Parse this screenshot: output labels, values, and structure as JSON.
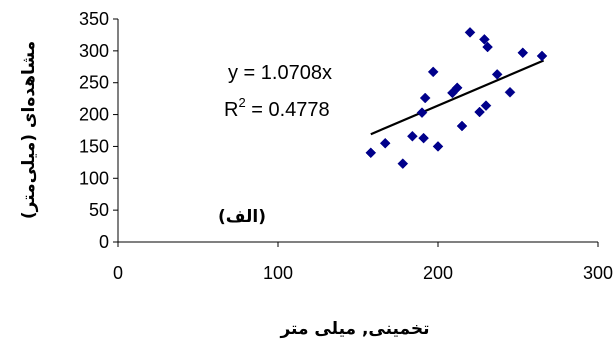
{
  "chart_data": {
    "type": "scatter",
    "title": "",
    "xlabel": "تخمینی, میلی متر",
    "ylabel": "مشاهده‌ای (میلی‌متر)",
    "xlim": [
      0,
      300
    ],
    "ylim": [
      0,
      350
    ],
    "x_ticks": [
      "0",
      "100",
      "200",
      "300"
    ],
    "y_ticks": [
      "0",
      "50",
      "100",
      "150",
      "200",
      "250",
      "300",
      "350"
    ],
    "grid": false,
    "legend": "none",
    "marker_color": "#00008b",
    "marker": "diamond",
    "trendline": {
      "slope": 1.0708,
      "x_range": [
        158,
        266
      ]
    },
    "equation_line1": "y = 1.0708x",
    "equation_r2_base": "R",
    "equation_r2_sup": "2",
    "equation_r2_rest": " = 0.4778",
    "panel_label": "(الف)",
    "points": [
      {
        "x": 158,
        "y": 140
      },
      {
        "x": 167,
        "y": 155
      },
      {
        "x": 178,
        "y": 123
      },
      {
        "x": 184,
        "y": 166
      },
      {
        "x": 190,
        "y": 203
      },
      {
        "x": 191,
        "y": 163
      },
      {
        "x": 192,
        "y": 226
      },
      {
        "x": 197,
        "y": 267
      },
      {
        "x": 200,
        "y": 150
      },
      {
        "x": 209,
        "y": 234
      },
      {
        "x": 212,
        "y": 242
      },
      {
        "x": 215,
        "y": 182
      },
      {
        "x": 220,
        "y": 329
      },
      {
        "x": 226,
        "y": 204
      },
      {
        "x": 229,
        "y": 318
      },
      {
        "x": 230,
        "y": 214
      },
      {
        "x": 231,
        "y": 306
      },
      {
        "x": 237,
        "y": 263
      },
      {
        "x": 245,
        "y": 235
      },
      {
        "x": 253,
        "y": 297
      },
      {
        "x": 265,
        "y": 292
      }
    ]
  }
}
